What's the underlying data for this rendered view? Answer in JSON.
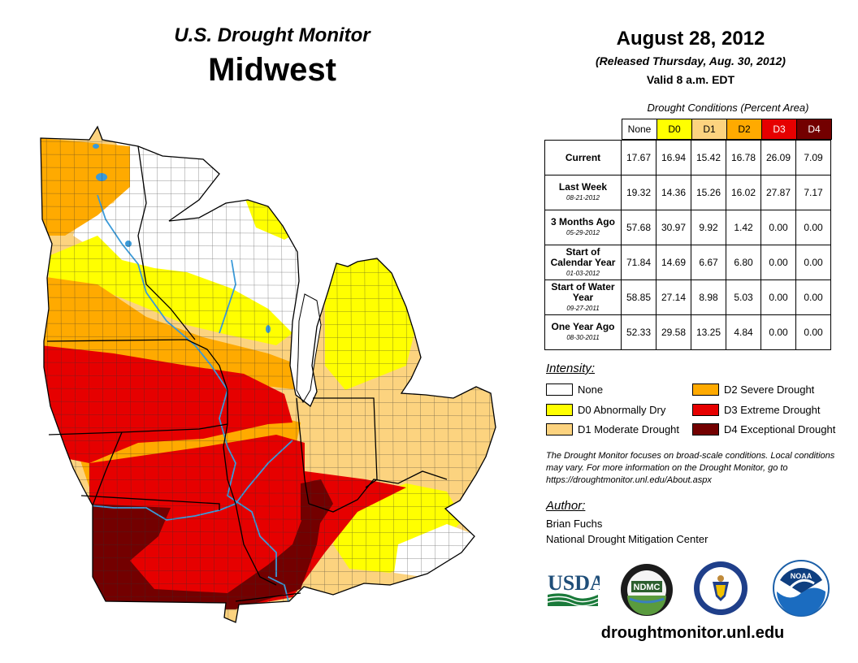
{
  "header": {
    "subtitle": "U.S. Drought Monitor",
    "region": "Midwest",
    "date": "August 28, 2012",
    "released": "(Released Thursday, Aug. 30, 2012)",
    "valid": "Valid 8 a.m. EDT"
  },
  "table": {
    "caption": "Drought Conditions (Percent Area)",
    "columns": [
      "None",
      "D0",
      "D1",
      "D2",
      "D3",
      "D4"
    ],
    "rows": [
      {
        "label": "Current",
        "sublabel": "",
        "values": [
          "17.67",
          "16.94",
          "15.42",
          "16.78",
          "26.09",
          "7.09"
        ]
      },
      {
        "label": "Last Week",
        "sublabel": "08-21-2012",
        "values": [
          "19.32",
          "14.36",
          "15.26",
          "16.02",
          "27.87",
          "7.17"
        ]
      },
      {
        "label": "3 Months Ago",
        "sublabel": "05-29-2012",
        "values": [
          "57.68",
          "30.97",
          "9.92",
          "1.42",
          "0.00",
          "0.00"
        ]
      },
      {
        "label": "Start of Calendar Year",
        "sublabel": "01-03-2012",
        "values": [
          "71.84",
          "14.69",
          "6.67",
          "6.80",
          "0.00",
          "0.00"
        ]
      },
      {
        "label": "Start of Water Year",
        "sublabel": "09-27-2011",
        "values": [
          "58.85",
          "27.14",
          "8.98",
          "5.03",
          "0.00",
          "0.00"
        ]
      },
      {
        "label": "One Year Ago",
        "sublabel": "08-30-2011",
        "values": [
          "52.33",
          "29.58",
          "13.25",
          "4.84",
          "0.00",
          "0.00"
        ]
      }
    ]
  },
  "colors": {
    "none": "#ffffff",
    "d0": "#ffff00",
    "d1": "#fcd37f",
    "d2": "#ffaa00",
    "d3": "#e60000",
    "d4": "#730000",
    "water": "#3a9ad9"
  },
  "legend": {
    "title": "Intensity:",
    "items": [
      {
        "key": "none",
        "label": "None"
      },
      {
        "key": "d0",
        "label": "D0 Abnormally Dry"
      },
      {
        "key": "d1",
        "label": "D1 Moderate Drought"
      },
      {
        "key": "d2",
        "label": "D2 Severe Drought"
      },
      {
        "key": "d3",
        "label": "D3 Extreme Drought"
      },
      {
        "key": "d4",
        "label": "D4 Exceptional Drought"
      }
    ]
  },
  "note": "The Drought Monitor focuses on broad-scale conditions. Local conditions may vary. For more information on the Drought Monitor, go to https://droughtmonitor.unl.edu/About.aspx",
  "author": {
    "title": "Author:",
    "name": "Brian Fuchs",
    "org": "National Drought Mitigation Center"
  },
  "logos": {
    "usda": "USDA",
    "ndmc": "NDMC",
    "noaa": "NOAA"
  },
  "website": "droughtmonitor.unl.edu"
}
